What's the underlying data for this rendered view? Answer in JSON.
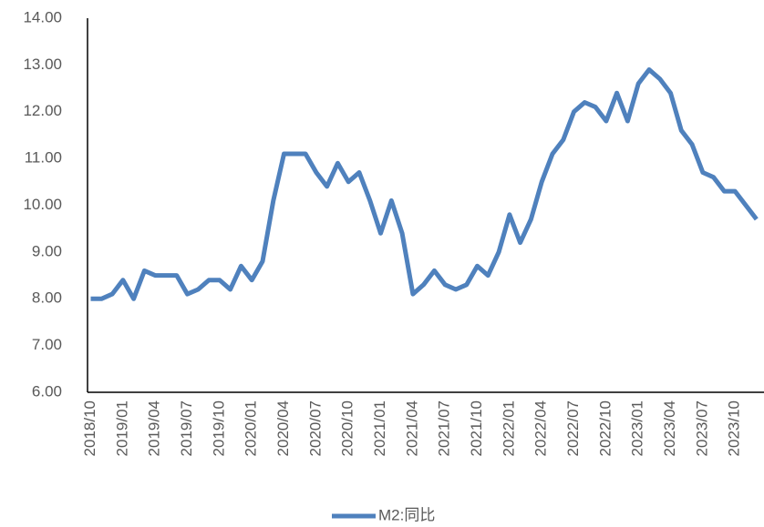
{
  "chart_data": {
    "type": "line",
    "categories": [
      "2018/10",
      null,
      null,
      "2019/01",
      null,
      null,
      "2019/04",
      null,
      null,
      "2019/07",
      null,
      null,
      "2019/10",
      null,
      null,
      "2020/01",
      null,
      null,
      "2020/04",
      null,
      null,
      "2020/07",
      null,
      null,
      "2020/10",
      null,
      null,
      "2021/01",
      null,
      null,
      "2021/04",
      null,
      null,
      "2021/07",
      null,
      null,
      "2021/10",
      null,
      null,
      "2022/01",
      null,
      null,
      "2022/04",
      null,
      null,
      "2022/07",
      null,
      null,
      "2022/10",
      null,
      null,
      "2023/01",
      null,
      null,
      "2023/04",
      null,
      null,
      "2023/07",
      null,
      null,
      "2023/10",
      null,
      null
    ],
    "series": [
      {
        "name": "M2:同比",
        "color": "#4f81bd",
        "values": [
          8.0,
          8.0,
          8.1,
          8.4,
          8.0,
          8.6,
          8.5,
          8.5,
          8.5,
          8.1,
          8.2,
          8.4,
          8.4,
          8.2,
          8.7,
          8.4,
          8.8,
          10.1,
          11.1,
          11.1,
          11.1,
          10.7,
          10.4,
          10.9,
          10.5,
          10.7,
          10.1,
          9.4,
          10.1,
          9.4,
          8.1,
          8.3,
          8.6,
          8.3,
          8.2,
          8.3,
          8.7,
          8.5,
          9.0,
          9.8,
          9.2,
          9.7,
          10.5,
          11.1,
          11.4,
          12.0,
          12.2,
          12.1,
          11.8,
          12.4,
          11.8,
          12.6,
          12.9,
          12.7,
          12.4,
          11.6,
          11.3,
          10.7,
          10.6,
          10.3,
          10.3,
          10.0,
          9.7
        ]
      }
    ],
    "ylim": [
      6,
      14
    ],
    "yticks": [
      {
        "value": 6,
        "label": "6.00"
      },
      {
        "value": 7,
        "label": "7.00"
      },
      {
        "value": 8,
        "label": "8.00"
      },
      {
        "value": 9,
        "label": "9.00"
      },
      {
        "value": 10,
        "label": "10.00"
      },
      {
        "value": 11,
        "label": "11.00"
      },
      {
        "value": 12,
        "label": "12.00"
      },
      {
        "value": 13,
        "label": "13.00"
      },
      {
        "value": 14,
        "label": "14.00"
      }
    ],
    "grid": false,
    "legend": "bottom"
  }
}
